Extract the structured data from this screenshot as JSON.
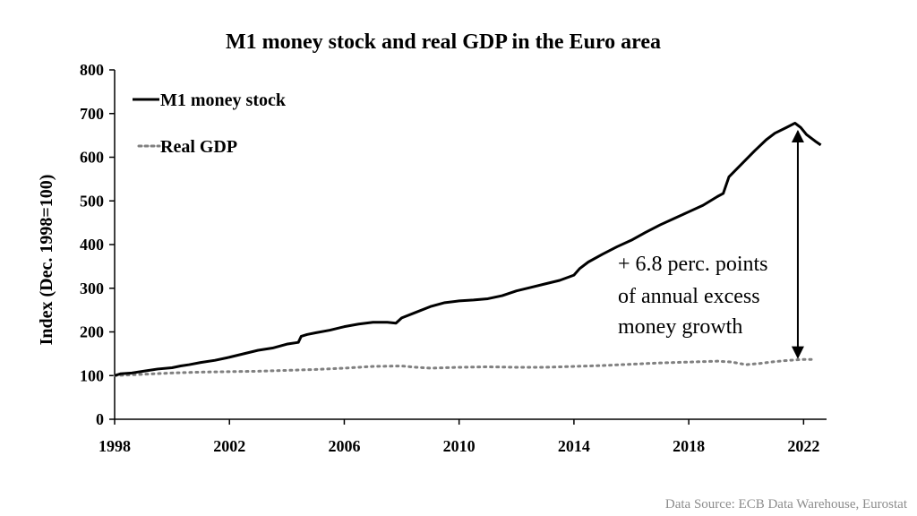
{
  "chart_data": {
    "type": "line",
    "title": "M1 money stock and real GDP in the Euro area",
    "xlabel": "",
    "ylabel": "Index (Dec. 1998=100)",
    "xlim": [
      1998,
      2022.8
    ],
    "ylim": [
      0,
      800
    ],
    "yticks": [
      0,
      100,
      200,
      300,
      400,
      500,
      600,
      700,
      800
    ],
    "xticks": [
      1998,
      2002,
      2006,
      2010,
      2014,
      2018,
      2022
    ],
    "grid": false,
    "legend_position": "top-left",
    "series": [
      {
        "name": "M1 money stock",
        "style": "solid",
        "color": "#000000",
        "x": [
          1998.0,
          1998.2,
          1998.6,
          1999.0,
          1999.5,
          2000.0,
          2000.3,
          2000.6,
          2001.0,
          2001.5,
          2002.0,
          2002.5,
          2003.0,
          2003.5,
          2004.0,
          2004.4,
          2004.5,
          2004.7,
          2005.0,
          2005.5,
          2006.0,
          2006.5,
          2007.0,
          2007.5,
          2007.8,
          2008.0,
          2008.5,
          2009.0,
          2009.5,
          2010.0,
          2010.5,
          2011.0,
          2011.5,
          2012.0,
          2012.5,
          2013.0,
          2013.5,
          2014.0,
          2014.2,
          2014.5,
          2015.0,
          2015.5,
          2016.0,
          2016.5,
          2017.0,
          2017.5,
          2018.0,
          2018.5,
          2019.0,
          2019.2,
          2019.4,
          2019.7,
          2020.0,
          2020.3,
          2020.7,
          2021.0,
          2021.4,
          2021.7,
          2021.9,
          2022.1,
          2022.4,
          2022.6
        ],
        "y": [
          100,
          104,
          106,
          110,
          115,
          118,
          122,
          125,
          130,
          135,
          142,
          150,
          158,
          163,
          172,
          176,
          190,
          194,
          198,
          204,
          212,
          218,
          222,
          222,
          220,
          232,
          245,
          258,
          267,
          271,
          273,
          276,
          283,
          294,
          302,
          310,
          318,
          330,
          345,
          360,
          378,
          395,
          410,
          428,
          445,
          460,
          475,
          490,
          510,
          517,
          555,
          575,
          595,
          615,
          640,
          655,
          668,
          678,
          668,
          652,
          637,
          628
        ]
      },
      {
        "name": "Real GDP",
        "style": "dotted",
        "color": "#808080",
        "x": [
          1998.0,
          1999.0,
          2000.0,
          2001.0,
          2002.0,
          2003.0,
          2004.0,
          2005.0,
          2006.0,
          2007.0,
          2008.0,
          2008.5,
          2009.0,
          2010.0,
          2011.0,
          2012.0,
          2013.0,
          2014.0,
          2015.0,
          2016.0,
          2017.0,
          2018.0,
          2019.0,
          2019.5,
          2020.0,
          2020.5,
          2021.0,
          2021.5,
          2022.0,
          2022.4
        ],
        "y": [
          100,
          103,
          106,
          108,
          109,
          110,
          112,
          114,
          117,
          121,
          122,
          119,
          117,
          119,
          120,
          119,
          119,
          121,
          123,
          126,
          129,
          131,
          133,
          131,
          125,
          128,
          132,
          135,
          137,
          137
        ]
      }
    ],
    "annotation": {
      "lines": [
        "+ 6.8 perc. points",
        "of  annual excess",
        "money growth"
      ],
      "arrow_x": 2021.8,
      "arrow_from": 137,
      "arrow_to": 668
    },
    "source": "Data Source: ECB Data Warehouse, Eurostat"
  }
}
